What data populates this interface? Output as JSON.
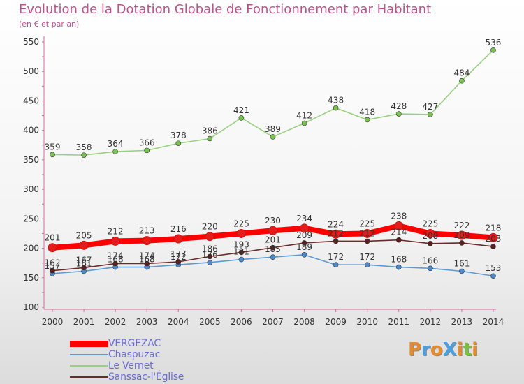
{
  "header": {
    "title": "Evolution de la Dotation Globale de Fonctionnement par Habitant",
    "subtitle": "(en € et par an)"
  },
  "logo": {
    "text": "ProXiti",
    "letters": [
      {
        "ch": "P",
        "color": "#e58b2e"
      },
      {
        "ch": "r",
        "color": "#4a9fe0"
      },
      {
        "ch": "o",
        "color": "#e58b2e"
      },
      {
        "ch": "X",
        "color": "#4a9fe0"
      },
      {
        "ch": "i",
        "color": "#e58b2e"
      },
      {
        "ch": "t",
        "color": "#7bc043"
      },
      {
        "ch": "i",
        "color": "#e58b2e"
      }
    ]
  },
  "chart_data": {
    "type": "line",
    "title": "Evolution de la Dotation Globale de Fonctionnement par Habitant",
    "subtitle": "(en € et par an)",
    "xlabel": "",
    "ylabel": "",
    "x": [
      "2000",
      "2001",
      "2002",
      "2003",
      "2004",
      "2005",
      "2006",
      "2007",
      "2008",
      "2009",
      "2010",
      "2011",
      "2012",
      "2013",
      "2014"
    ],
    "ylim": [
      100,
      550
    ],
    "yticks": [
      100,
      150,
      200,
      250,
      300,
      350,
      400,
      450,
      500,
      550
    ],
    "grid": false,
    "legend_position": "bottom-left",
    "series": [
      {
        "name": "VERGEZAC",
        "color": "#ff0000",
        "marker": "#e51c1c",
        "thick": true,
        "values": [
          201,
          205,
          212,
          213,
          216,
          220,
          225,
          230,
          234,
          224,
          225,
          238,
          225,
          222,
          218
        ],
        "labels": [
          "201",
          "205",
          "212",
          "213",
          "216",
          "220",
          "225",
          "230",
          "234",
          "224",
          "225",
          "238",
          "225",
          "222",
          "218"
        ]
      },
      {
        "name": "Chaspuzac",
        "color": "#5b9bd5",
        "marker": "#4a8ad0",
        "thick": false,
        "values": [
          157,
          161,
          168,
          168,
          172,
          176,
          181,
          185,
          189,
          172,
          172,
          168,
          166,
          161,
          153
        ],
        "labels": [
          "157",
          "161",
          "168",
          "168",
          "172",
          "176",
          "181",
          "185",
          "189",
          "172",
          "172",
          "168",
          "166",
          "161",
          "153"
        ]
      },
      {
        "name": "Le Vernet",
        "color": "#98d17e",
        "marker": "#7ac24f",
        "thick": false,
        "values": [
          359,
          358,
          364,
          366,
          378,
          386,
          421,
          389,
          412,
          438,
          418,
          428,
          427,
          484,
          536
        ],
        "labels": [
          "359",
          "358",
          "364",
          "366",
          "378",
          "386",
          "421",
          "389",
          "412",
          "438",
          "418",
          "428",
          "427",
          "484",
          "536"
        ]
      },
      {
        "name": "Sanssac-l'Église",
        "color": "#6b2a2a",
        "marker": "#5a1f1f",
        "thick": false,
        "values": [
          162,
          167,
          174,
          174,
          177,
          186,
          193,
          201,
          209,
          212,
          212,
          214,
          208,
          209,
          203
        ],
        "labels": [
          "162",
          "167",
          "174",
          "174",
          "177",
          "186",
          "193",
          "201",
          "209",
          "212",
          "212",
          "214",
          "208",
          "209",
          "203"
        ]
      }
    ]
  }
}
